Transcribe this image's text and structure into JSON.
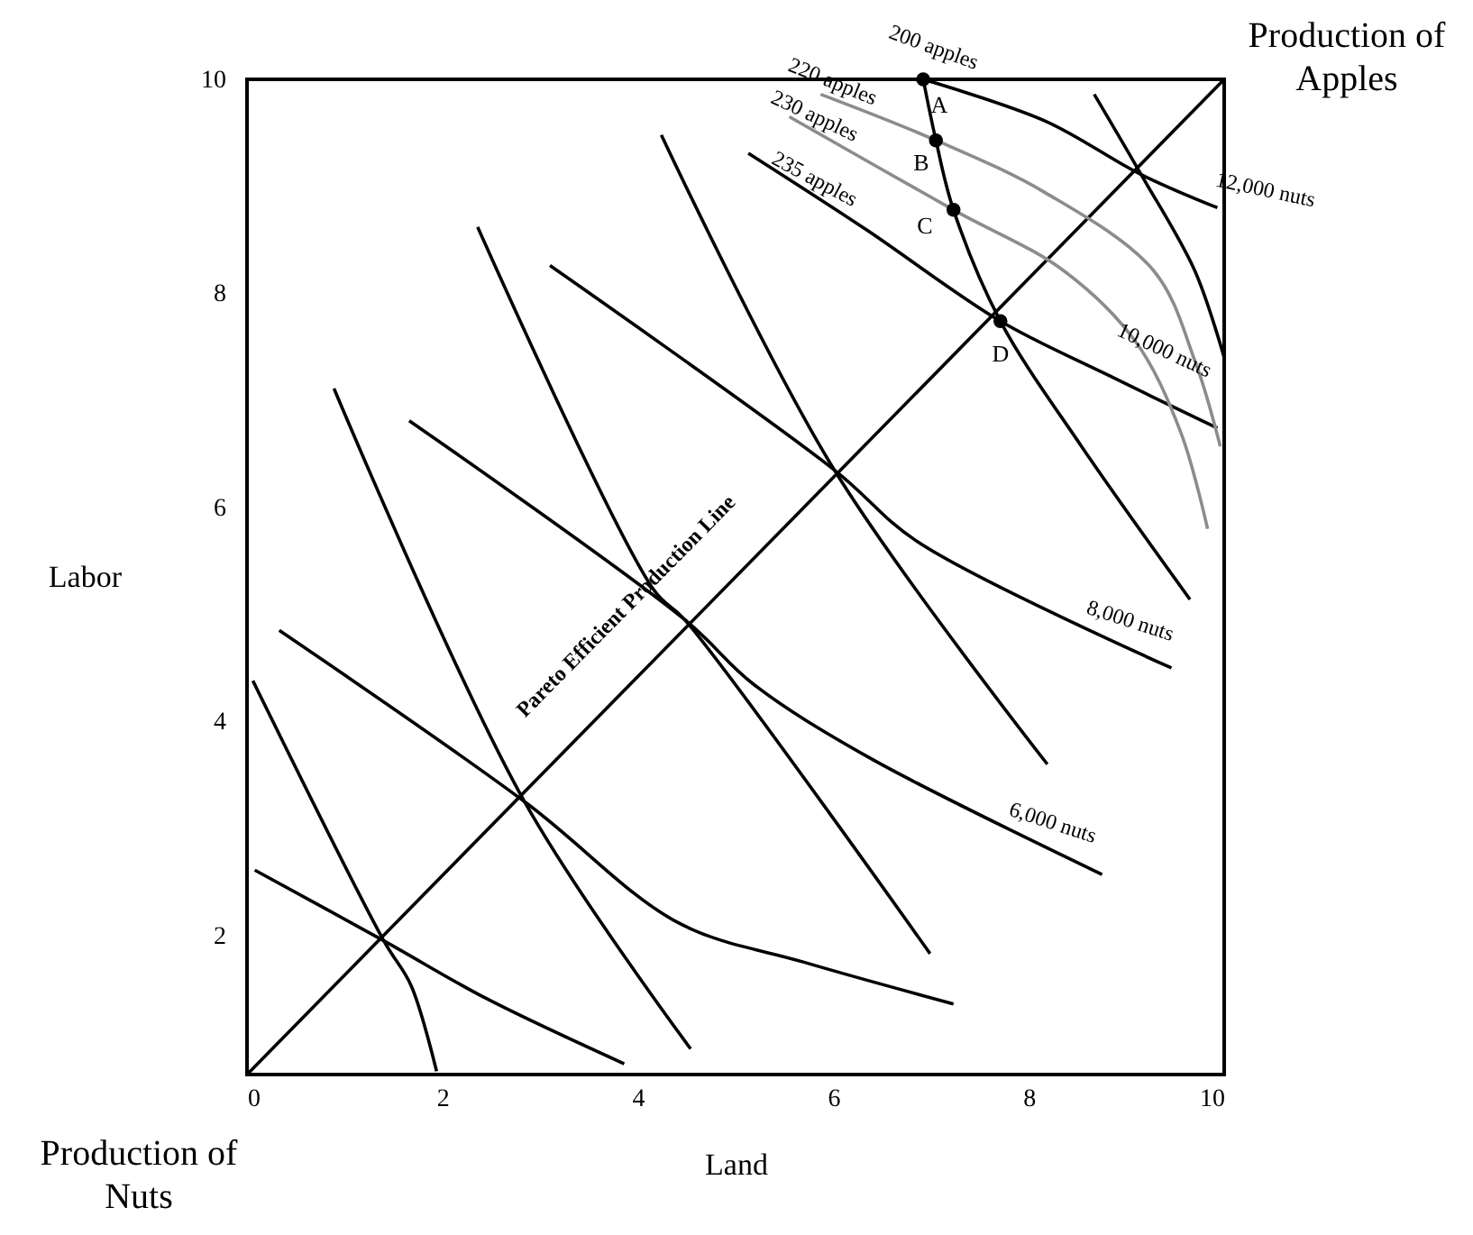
{
  "chart_data": {
    "type": "line",
    "xlabel": "Land",
    "ylabel": "Labor",
    "xlim": [
      0,
      10
    ],
    "ylim": [
      0.7,
      10
    ],
    "xticks": [
      0,
      2,
      4,
      6,
      8,
      10
    ],
    "yticks": [
      2,
      4,
      6,
      8,
      10
    ],
    "series": [
      {
        "color": "#000000",
        "x": [
          0,
          10
        ],
        "values": [
          0.7,
          10
        ]
      },
      {
        "color": "#000000",
        "x": [
          0.08,
          1.4,
          2.45,
          3.86
        ],
        "values": [
          2.61,
          1.95,
          1.41,
          0.8
        ]
      },
      {
        "color": "#000000",
        "x": [
          0.33,
          2.84,
          4.41,
          5.7,
          7.23
        ],
        "values": [
          4.85,
          3.25,
          2.12,
          1.75,
          1.36
        ]
      },
      {
        "color": "#000000",
        "x": [
          1.66,
          4.48,
          5.18,
          6.35,
          8.75
        ],
        "values": [
          6.81,
          4.95,
          4.35,
          3.67,
          2.57
        ]
      },
      {
        "color": "#000000",
        "x": [
          3.1,
          6.01,
          6.86,
          9.46
        ],
        "values": [
          8.26,
          6.35,
          5.68,
          4.5
        ]
      },
      {
        "color": "#000000",
        "x": [
          5.13,
          6.33,
          7.71,
          8.78,
          9.93
        ],
        "values": [
          9.31,
          8.6,
          7.74,
          7.25,
          6.74
        ]
      },
      {
        "color": "#8c8c8c",
        "x": [
          5.87,
          7.05,
          8.17,
          9.28,
          9.7,
          9.96
        ],
        "values": [
          9.86,
          9.43,
          8.94,
          8.21,
          7.37,
          6.57
        ]
      },
      {
        "color": "#8c8c8c",
        "x": [
          5.55,
          7.23,
          8.36,
          9.1,
          9.56,
          9.83
        ],
        "values": [
          9.65,
          8.78,
          8.21,
          7.54,
          6.69,
          5.8
        ]
      },
      {
        "color": "#000000",
        "x": [
          6.92,
          8.17,
          9.15,
          9.93
        ],
        "values": [
          10,
          9.61,
          9.11,
          8.8
        ]
      },
      {
        "color": "#000000",
        "x": [
          0.06,
          1.4,
          1.68,
          1.94
        ],
        "values": [
          4.38,
          1.95,
          1.53,
          0.73
        ]
      },
      {
        "color": "#000000",
        "x": [
          0.89,
          2.84,
          4.54
        ],
        "values": [
          7.11,
          3.25,
          0.94
        ]
      },
      {
        "color": "#000000",
        "x": [
          2.36,
          4.17,
          4.48,
          6.99
        ],
        "values": [
          8.62,
          5.22,
          4.95,
          1.83
        ]
      },
      {
        "color": "#000000",
        "x": [
          4.24,
          6.01,
          8.19
        ],
        "values": [
          9.48,
          6.35,
          3.6
        ]
      },
      {
        "color": "#000000",
        "x": [
          6.92,
          7.05,
          7.23,
          7.71,
          8.54,
          9.65
        ],
        "values": [
          10,
          9.43,
          8.78,
          7.74,
          6.57,
          5.14
        ]
      },
      {
        "color": "#000000",
        "x": [
          8.67,
          9.15,
          9.7,
          10
        ],
        "values": [
          9.86,
          9.11,
          8.21,
          7.4
        ]
      },
      {
        "type": "scatter",
        "marker": "circle",
        "color": "#000000",
        "x": [
          6.92,
          7.05,
          7.23,
          7.71
        ],
        "values": [
          10,
          9.43,
          8.78,
          7.74
        ]
      }
    ],
    "annotations": [
      "200 apples",
      "220 apples",
      "230 apples",
      "235 apples",
      "A",
      "B",
      "C",
      "D",
      "12,000 nuts",
      "10,000 nuts",
      "8,000 nuts",
      "6,000 nuts",
      "Pareto Efficient Production Line",
      "Production of Apples",
      "Production of Nuts"
    ]
  }
}
